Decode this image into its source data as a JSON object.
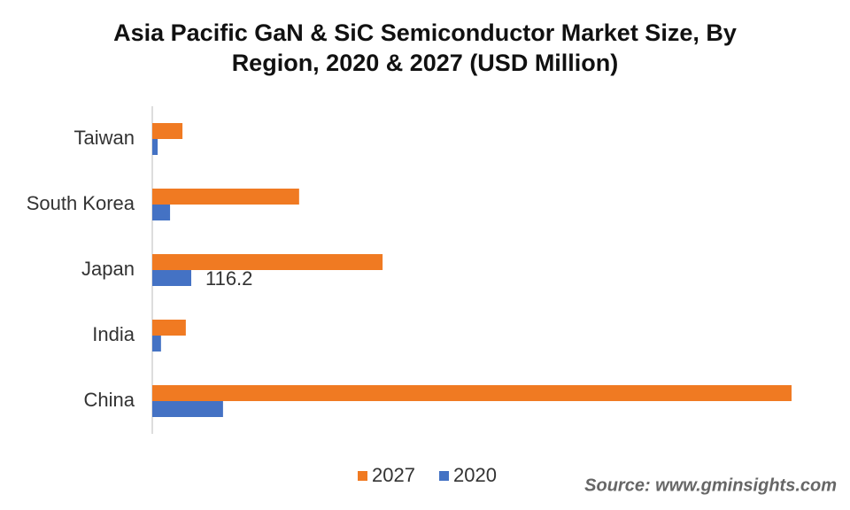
{
  "chart_data": {
    "type": "bar",
    "orientation": "horizontal",
    "title": "Asia Pacific GaN & SiC Semiconductor Market Size, By Region, 2020 & 2027 (USD Million)",
    "categories": [
      "Taiwan",
      "South Korea",
      "Japan",
      "India",
      "China"
    ],
    "series": [
      {
        "name": "2027",
        "color": "#f07a22",
        "values": [
          90,
          438,
          687,
          100,
          1907
        ]
      },
      {
        "name": "2020",
        "color": "#4472c4",
        "values": [
          16,
          53,
          116.2,
          26,
          211
        ],
        "value_labels": [
          null,
          null,
          "116.2",
          null,
          null
        ]
      }
    ],
    "source": "Source: www.gminsights.com"
  }
}
